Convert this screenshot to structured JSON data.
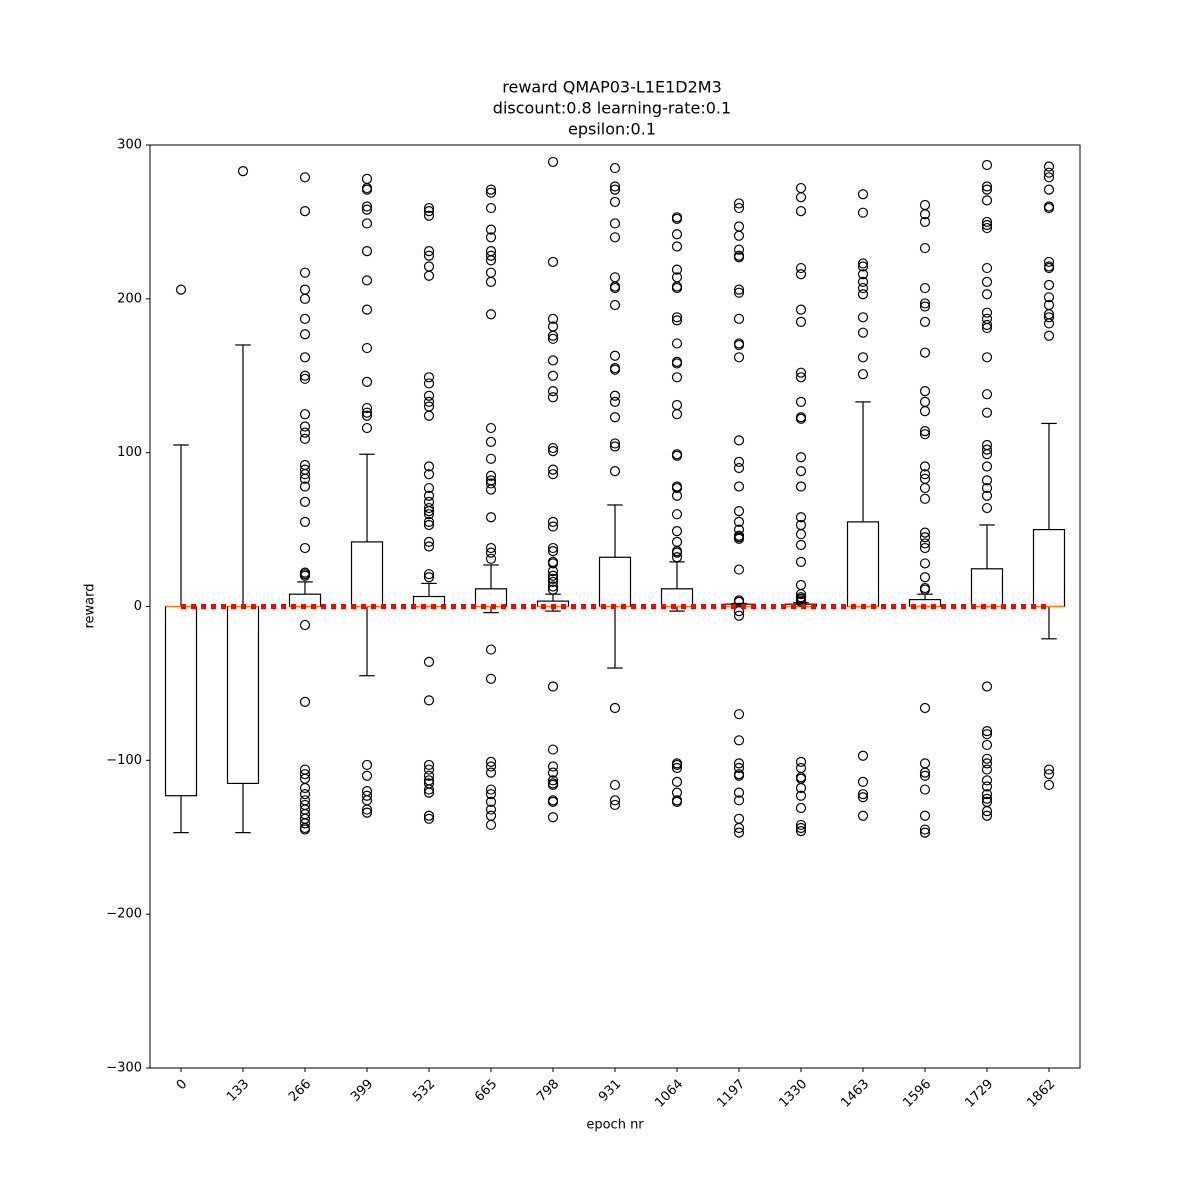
{
  "chart_data": {
    "type": "box",
    "title": [
      "reward QMAP03-L1E1D2M3",
      "discount:0.8 learning-rate:0.1",
      "epsilon:0.1"
    ],
    "xlabel": "epoch nr",
    "ylabel": "reward",
    "categories": [
      "0",
      "133",
      "266",
      "399",
      "532",
      "665",
      "798",
      "931",
      "1064",
      "1197",
      "1330",
      "1463",
      "1596",
      "1729",
      "1862"
    ],
    "box_color": "#000000",
    "median_color": "#ff7f0e",
    "reference_line": {
      "value": 0,
      "color": "#ff0000"
    },
    "ylim": [
      -300,
      300
    ],
    "yticks": [
      {
        "value": -300,
        "label": "−300"
      },
      {
        "value": -200,
        "label": "−200"
      },
      {
        "value": -100,
        "label": "−100"
      },
      0,
      100,
      200,
      300
    ],
    "boxes": [
      {
        "whislo": -147,
        "q1": -123,
        "med": 0,
        "q3": 0,
        "whishi": 105,
        "fliers": [
          206
        ]
      },
      {
        "whislo": -147,
        "q1": -115,
        "med": 0,
        "q3": 0,
        "whishi": 170,
        "fliers": [
          283
        ]
      },
      {
        "whislo": 0,
        "q1": 0,
        "med": 0,
        "q3": 8,
        "whishi": 16,
        "fliers": [
          279,
          257,
          217,
          206,
          200,
          187,
          177,
          162,
          150,
          148,
          125,
          117,
          113,
          109,
          92,
          89,
          86,
          83,
          78,
          68,
          55,
          38,
          22,
          21,
          20,
          -12,
          -62,
          -106,
          -109,
          -112,
          -118,
          -122,
          -126,
          -129,
          -132,
          -135,
          -138,
          -141,
          -144,
          -145
        ]
      },
      {
        "whislo": -45,
        "q1": 0,
        "med": 0,
        "q3": 42,
        "whishi": 99,
        "fliers": [
          278,
          272,
          271,
          260,
          258,
          249,
          231,
          212,
          193,
          168,
          146,
          129,
          126,
          124,
          116,
          -103,
          -110,
          -120,
          -123,
          -126,
          -132,
          -134
        ]
      },
      {
        "whislo": 0,
        "q1": 0,
        "med": 0,
        "q3": 6.5,
        "whishi": 15,
        "fliers": [
          259,
          257,
          254,
          231,
          228,
          221,
          215,
          149,
          145,
          137,
          133,
          130,
          124,
          91,
          86,
          77,
          72,
          68,
          64,
          62,
          60,
          55,
          53,
          42,
          39,
          21,
          19,
          -36,
          -61,
          -103,
          -106,
          -110,
          -113,
          -115,
          -119,
          -121,
          -136,
          -138
        ]
      },
      {
        "whislo": -4,
        "q1": 0,
        "med": 0,
        "q3": 11.5,
        "whishi": 27,
        "fliers": [
          271,
          269,
          259,
          245,
          240,
          231,
          228,
          225,
          217,
          211,
          190,
          116,
          107,
          96,
          85,
          82,
          80,
          76,
          58,
          38,
          35,
          31,
          -28,
          -47,
          -101,
          -104,
          -108,
          -119,
          -122,
          -127,
          -132,
          -136,
          -142
        ]
      },
      {
        "whislo": -3,
        "q1": 0,
        "med": 0,
        "q3": 3.5,
        "whishi": 8,
        "fliers": [
          289,
          224,
          187,
          182,
          176,
          174,
          160,
          150,
          140,
          136,
          103,
          101,
          89,
          86,
          55,
          52,
          38,
          36,
          29,
          28,
          23,
          20,
          18,
          16,
          13,
          11,
          -52,
          -93,
          -104,
          -108,
          -113,
          -115,
          -116,
          -126,
          -127,
          -137
        ]
      },
      {
        "whislo": -40,
        "q1": 0,
        "med": 0,
        "q3": 32,
        "whishi": 66,
        "fliers": [
          285,
          273,
          271,
          263,
          249,
          240,
          214,
          208,
          207,
          196,
          163,
          155,
          154,
          137,
          133,
          123,
          106,
          104,
          88,
          -66,
          -116,
          -126,
          -129
        ]
      },
      {
        "whislo": -3,
        "q1": 0,
        "med": 0,
        "q3": 11.5,
        "whishi": 29,
        "fliers": [
          253,
          252,
          242,
          234,
          219,
          214,
          208,
          207,
          188,
          186,
          171,
          159,
          158,
          149,
          131,
          125,
          99,
          98,
          78,
          77,
          72,
          60,
          49,
          42,
          36,
          35,
          32,
          -102,
          -103,
          -105,
          -114,
          -121,
          -126,
          -127
        ]
      },
      {
        "whislo": 0,
        "q1": 0,
        "med": 0,
        "q3": 1.5,
        "whishi": 2,
        "fliers": [
          262,
          259,
          247,
          241,
          232,
          228,
          227,
          206,
          204,
          187,
          171,
          170,
          162,
          108,
          94,
          90,
          78,
          62,
          55,
          50,
          46,
          45,
          44,
          24,
          4,
          3,
          -3,
          -6,
          -70,
          -87,
          -102,
          -105,
          -109,
          -110,
          -121,
          -126,
          -138,
          -144,
          -147
        ]
      },
      {
        "whislo": 0,
        "q1": 0,
        "med": 0,
        "q3": 1.5,
        "whishi": 2.5,
        "fliers": [
          272,
          266,
          257,
          220,
          216,
          193,
          185,
          152,
          149,
          133,
          123,
          122,
          97,
          88,
          78,
          58,
          53,
          47,
          40,
          29,
          14,
          8,
          6,
          5,
          4,
          3,
          -101,
          -105,
          -111,
          -112,
          -118,
          -123,
          -131,
          -142,
          -144,
          -146
        ]
      },
      {
        "whislo": 0,
        "q1": 0,
        "med": 0,
        "q3": 55,
        "whishi": 133,
        "fliers": [
          268,
          256,
          223,
          221,
          216,
          211,
          207,
          203,
          188,
          178,
          162,
          151,
          -97,
          -114,
          -122,
          -124,
          -136
        ]
      },
      {
        "whislo": 0,
        "q1": 0,
        "med": 0,
        "q3": 4.5,
        "whishi": 8,
        "fliers": [
          261,
          255,
          250,
          233,
          207,
          197,
          195,
          185,
          165,
          140,
          133,
          127,
          114,
          112,
          91,
          86,
          83,
          77,
          70,
          48,
          45,
          41,
          38,
          28,
          19,
          12,
          11,
          -66,
          -102,
          -108,
          -110,
          -119,
          -136,
          -145,
          -147
        ]
      },
      {
        "whislo": 0,
        "q1": 0,
        "med": 0,
        "q3": 24.5,
        "whishi": 53,
        "fliers": [
          287,
          273,
          271,
          264,
          250,
          248,
          246,
          220,
          211,
          203,
          191,
          187,
          183,
          181,
          162,
          138,
          126,
          105,
          102,
          99,
          91,
          82,
          77,
          72,
          64,
          -52,
          -81,
          -83,
          -90,
          -99,
          -102,
          -106,
          -113,
          -117,
          -122,
          -125,
          -127,
          -133,
          -136
        ]
      },
      {
        "whislo": -21,
        "q1": 0,
        "med": 0,
        "q3": 50,
        "whishi": 119,
        "fliers": [
          286,
          282,
          279,
          271,
          260,
          259,
          224,
          221,
          220,
          209,
          201,
          196,
          190,
          188,
          184,
          176,
          -106,
          -109,
          -116
        ]
      }
    ]
  }
}
